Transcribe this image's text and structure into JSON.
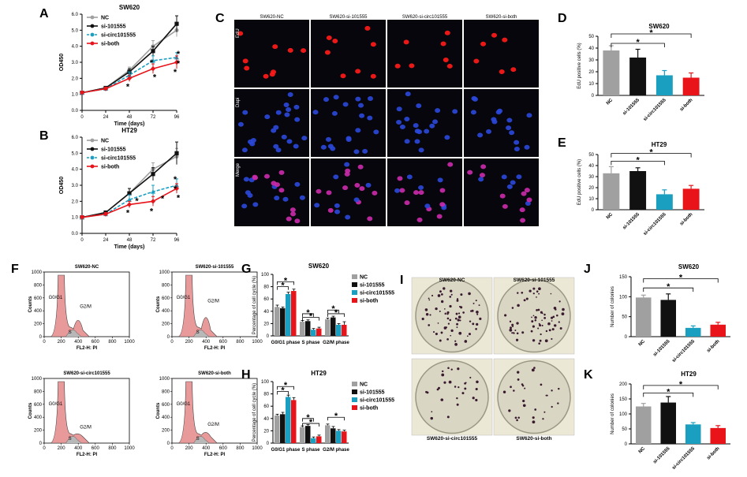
{
  "figure": {
    "panel_letters": [
      "A",
      "B",
      "C",
      "D",
      "E",
      "F",
      "G",
      "H",
      "I",
      "J",
      "K"
    ],
    "colors": {
      "nc": "#a0a0a0",
      "si101555": "#111111",
      "sicirc": "#1a9fc0",
      "siboth": "#e8141a",
      "micro_bg": "#06060c",
      "edu": "#ff1a1a",
      "dapi": "#2a48d8",
      "merge": "#c82aa8",
      "flow_fill": "#e89a9a",
      "plate": "#d9d6c4"
    }
  },
  "growth": [
    {
      "panel": "A",
      "title": "SW620",
      "ylabel": "OD450",
      "xlabel": "Time (days)",
      "yticks": [
        "0.0",
        "1.0",
        "2.0",
        "3.0",
        "4.0",
        "5.0",
        "6.0"
      ],
      "xticks": [
        "0",
        "24",
        "48",
        "72",
        "96"
      ],
      "legend": [
        "NC",
        "si-101555",
        "si-circ101555",
        "si-both"
      ],
      "stars": [
        "*",
        "*",
        "*",
        "*",
        "*",
        "*"
      ]
    },
    {
      "panel": "B",
      "title": "HT29",
      "ylabel": "OD450",
      "xlabel": "Time (days)",
      "yticks": [
        "0.0",
        "1.0",
        "2.0",
        "3.0",
        "4.0",
        "5.0",
        "6.0"
      ],
      "xticks": [
        "0",
        "24",
        "48",
        "72",
        "96"
      ],
      "legend": [
        "NC",
        "si-101555",
        "si-circ101555",
        "si-both"
      ],
      "stars": [
        "*",
        "*",
        "*",
        "*",
        "*",
        "*",
        "*"
      ]
    }
  ],
  "micro": {
    "columns": [
      "SW620-NC",
      "SW620-si-101555",
      "SW620-si-circ101555",
      "SW620-si-both"
    ],
    "rows": [
      "EdU",
      "Dapi",
      "Merge"
    ]
  },
  "edu_bars": [
    {
      "panel": "D",
      "title": "SW620",
      "ylabel": "EdU positive cells (%)",
      "yticks": [
        "0",
        "10",
        "20",
        "30",
        "40",
        "50"
      ],
      "categories": [
        "NC",
        "si-101555",
        "si-circ101555",
        "si-both"
      ],
      "stars": [
        "*",
        "*"
      ]
    },
    {
      "panel": "E",
      "title": "HT29",
      "ylabel": "EdU positive cells (%)",
      "yticks": [
        "0",
        "10",
        "20",
        "30",
        "40",
        "50"
      ],
      "categories": [
        "NC",
        "si-101555",
        "si-circ101555",
        "si-both"
      ],
      "stars": [
        "*",
        "*"
      ]
    }
  ],
  "flow": {
    "titles": [
      "SW620-NC",
      "SW620-si-101555",
      "SW620-si-circ101555",
      "SW620-si-both"
    ],
    "ylabel": "Counts",
    "xlabel": "FL2-H: PI",
    "xticks": [
      "0",
      "200",
      "400",
      "600",
      "800",
      "1000"
    ],
    "yticks": [
      "0",
      "200",
      "400",
      "600",
      "800",
      "1000"
    ],
    "peaks": [
      "G0/G1",
      "G2/M",
      "S"
    ]
  },
  "cycle_bars": [
    {
      "panel": "G",
      "title": "SW620",
      "ylabel": "Percentage of cell cycle (%)",
      "yticks": [
        "0",
        "20",
        "40",
        "60",
        "80",
        "100"
      ],
      "groups": [
        "G0/G1 phase",
        "S phase",
        "G2/M phase"
      ],
      "legend": [
        "NC",
        "si-101555",
        "si-circ101555",
        "si-both"
      ],
      "stars": [
        "*",
        "*",
        "*",
        "*",
        "*",
        "*"
      ]
    },
    {
      "panel": "H",
      "title": "HT29",
      "ylabel": "Percentage of cell cycle (%)",
      "yticks": [
        "0",
        "20",
        "40",
        "60",
        "80",
        "100"
      ],
      "groups": [
        "G0/G1 phase",
        "S phase",
        "G2/M phase"
      ],
      "legend": [
        "NC",
        "si-101555",
        "si-circ101555",
        "si-both"
      ],
      "stars": [
        "*",
        "*",
        "*",
        "*",
        "*"
      ]
    }
  ],
  "plates": {
    "labels": [
      "SW620-NC",
      "SW620-si-101555",
      "SW620-si-circ101555",
      "SW620-si-both"
    ]
  },
  "colony_bars": [
    {
      "panel": "J",
      "title": "SW620",
      "ylabel": "Number of colonies",
      "yticks": [
        "0",
        "50",
        "100",
        "150"
      ],
      "categories": [
        "NC",
        "si-101555",
        "si-circ101555",
        "si-both"
      ],
      "stars": [
        "*",
        "*"
      ]
    },
    {
      "panel": "K",
      "title": "HT29",
      "ylabel": "Number of colonies",
      "yticks": [
        "0",
        "50",
        "100",
        "150",
        "200"
      ],
      "categories": [
        "NC",
        "si-101555",
        "si-circ101555",
        "si-both"
      ],
      "stars": [
        "*",
        "*"
      ]
    }
  ],
  "chart_data": [
    {
      "type": "line",
      "title": "SW620",
      "xlabel": "Time (days)",
      "ylabel": "OD450",
      "x": [
        0,
        24,
        48,
        72,
        96
      ],
      "ylim": [
        0,
        6
      ],
      "series": [
        {
          "name": "NC",
          "values": [
            1.1,
            1.4,
            2.5,
            4.0,
            5.0
          ],
          "err": [
            0.1,
            0.1,
            0.2,
            0.35,
            0.4
          ]
        },
        {
          "name": "si-101555",
          "values": [
            1.1,
            1.4,
            2.4,
            3.7,
            5.4
          ],
          "err": [
            0.1,
            0.1,
            0.2,
            0.3,
            0.5
          ]
        },
        {
          "name": "si-circ101555",
          "values": [
            1.1,
            1.35,
            2.2,
            3.1,
            3.3
          ],
          "err": [
            0.1,
            0.1,
            0.2,
            0.3,
            0.3
          ]
        },
        {
          "name": "si-both",
          "values": [
            1.1,
            1.35,
            2.0,
            2.6,
            3.0
          ],
          "err": [
            0.1,
            0.1,
            0.2,
            0.3,
            0.4
          ]
        }
      ]
    },
    {
      "type": "line",
      "title": "HT29",
      "xlabel": "Time (days)",
      "ylabel": "OD450",
      "x": [
        0,
        24,
        48,
        72,
        96
      ],
      "ylim": [
        0,
        6
      ],
      "series": [
        {
          "name": "NC",
          "values": [
            1.0,
            1.3,
            2.5,
            4.0,
            4.8
          ],
          "err": [
            0.1,
            0.1,
            0.3,
            0.4,
            0.5
          ]
        },
        {
          "name": "si-101555",
          "values": [
            1.0,
            1.3,
            2.5,
            3.7,
            5.0
          ],
          "err": [
            0.1,
            0.1,
            0.3,
            0.4,
            0.7
          ]
        },
        {
          "name": "si-circ101555",
          "values": [
            1.0,
            1.2,
            2.1,
            2.6,
            3.0
          ],
          "err": [
            0.1,
            0.1,
            0.3,
            0.4,
            0.4
          ]
        },
        {
          "name": "si-both",
          "values": [
            1.0,
            1.2,
            1.8,
            2.0,
            2.8
          ],
          "err": [
            0.1,
            0.1,
            0.2,
            0.3,
            0.3
          ]
        }
      ]
    },
    {
      "type": "bar",
      "title": "SW620",
      "ylabel": "EdU positive cells (%)",
      "ylim": [
        0,
        50
      ],
      "categories": [
        "NC",
        "si-101555",
        "si-circ101555",
        "si-both"
      ],
      "values": [
        38,
        32,
        17,
        15
      ],
      "err": [
        4,
        7,
        4,
        4
      ]
    },
    {
      "type": "bar",
      "title": "HT29",
      "ylabel": "EdU positive cells (%)",
      "ylim": [
        0,
        50
      ],
      "categories": [
        "NC",
        "si-101555",
        "si-circ101555",
        "si-both"
      ],
      "values": [
        33,
        35,
        14,
        19
      ],
      "err": [
        6,
        3,
        4,
        3
      ]
    },
    {
      "type": "bar",
      "title": "SW620",
      "ylabel": "Percentage of cell cycle (%)",
      "ylim": [
        0,
        100
      ],
      "categories": [
        "G0/G1 phase",
        "S phase",
        "G2/M phase"
      ],
      "series": [
        {
          "name": "NC",
          "values": [
            47,
            23,
            27
          ],
          "err": [
            3,
            2,
            2
          ]
        },
        {
          "name": "si-101555",
          "values": [
            45,
            24,
            30
          ],
          "err": [
            2,
            2,
            2
          ]
        },
        {
          "name": "si-circ101555",
          "values": [
            68,
            10,
            18
          ],
          "err": [
            3,
            2,
            2
          ]
        },
        {
          "name": "si-both",
          "values": [
            73,
            12,
            18
          ],
          "err": [
            3,
            2,
            5
          ]
        }
      ]
    },
    {
      "type": "bar",
      "title": "HT29",
      "ylabel": "Percentage of cell cycle (%)",
      "ylim": [
        0,
        100
      ],
      "categories": [
        "G0/G1 phase",
        "S phase",
        "G2/M phase"
      ],
      "series": [
        {
          "name": "NC",
          "values": [
            45,
            26,
            29
          ],
          "err": [
            2,
            2,
            2
          ]
        },
        {
          "name": "si-101555",
          "values": [
            47,
            28,
            24
          ],
          "err": [
            3,
            2,
            3
          ]
        },
        {
          "name": "si-circ101555",
          "values": [
            75,
            8,
            20
          ],
          "err": [
            3,
            2,
            2
          ]
        },
        {
          "name": "si-both",
          "values": [
            70,
            11,
            19
          ],
          "err": [
            4,
            2,
            2
          ]
        }
      ]
    },
    {
      "type": "bar",
      "title": "SW620",
      "ylabel": "Number of colonies",
      "ylim": [
        0,
        150
      ],
      "categories": [
        "NC",
        "si-101555",
        "si-circ101555",
        "si-both"
      ],
      "values": [
        98,
        92,
        22,
        30
      ],
      "err": [
        6,
        15,
        5,
        6
      ]
    },
    {
      "type": "bar",
      "title": "HT29",
      "ylabel": "Number of colonies",
      "ylim": [
        0,
        200
      ],
      "categories": [
        "NC",
        "si-101555",
        "si-circ101555",
        "si-both"
      ],
      "values": [
        125,
        138,
        65,
        53
      ],
      "err": [
        10,
        20,
        6,
        8
      ]
    }
  ]
}
